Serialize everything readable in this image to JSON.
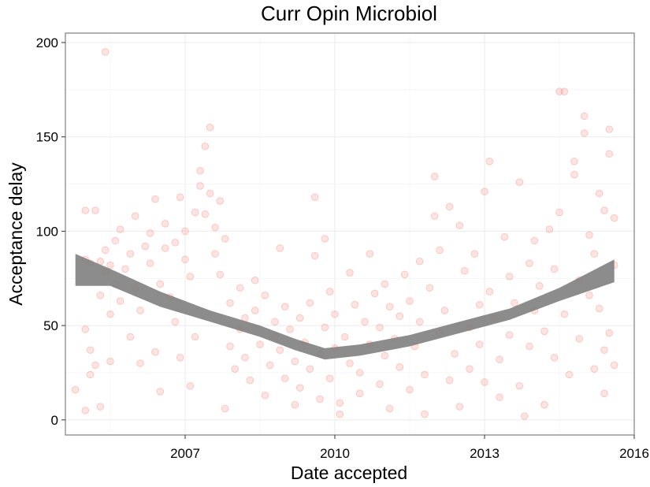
{
  "chart_data": {
    "type": "scatter",
    "title": "Curr Opin Microbiol",
    "xlabel": "Date accepted",
    "ylabel": "Acceptance delay",
    "x_ticks": [
      "2007",
      "2010",
      "2013",
      "2016"
    ],
    "y_ticks": [
      "0",
      "50",
      "100",
      "150",
      "200"
    ],
    "xlim": [
      2004.6,
      2016.0
    ],
    "ylim": [
      -8,
      205
    ],
    "grid": true,
    "point_color": "#f8766d",
    "band_color": "#808080",
    "points": [
      [
        2004.8,
        16
      ],
      [
        2005.0,
        111
      ],
      [
        2005.0,
        85
      ],
      [
        2005.0,
        48
      ],
      [
        2005.1,
        83
      ],
      [
        2005.1,
        37
      ],
      [
        2005.1,
        24
      ],
      [
        2005.0,
        5
      ],
      [
        2005.2,
        111
      ],
      [
        2005.3,
        84
      ],
      [
        2005.3,
        66
      ],
      [
        2005.2,
        29
      ],
      [
        2005.3,
        7
      ],
      [
        2005.4,
        195
      ],
      [
        2005.4,
        90
      ],
      [
        2005.4,
        78
      ],
      [
        2005.5,
        82
      ],
      [
        2005.5,
        56
      ],
      [
        2005.5,
        31
      ],
      [
        2005.6,
        95
      ],
      [
        2005.6,
        72
      ],
      [
        2005.7,
        101
      ],
      [
        2005.7,
        63
      ],
      [
        2005.8,
        80
      ],
      [
        2005.9,
        44
      ],
      [
        2005.9,
        88
      ],
      [
        2006.0,
        108
      ],
      [
        2006.0,
        70
      ],
      [
        2006.1,
        58
      ],
      [
        2006.1,
        30
      ],
      [
        2006.2,
        92
      ],
      [
        2006.3,
        99
      ],
      [
        2006.3,
        83
      ],
      [
        2006.4,
        117
      ],
      [
        2006.4,
        36
      ],
      [
        2006.5,
        72
      ],
      [
        2006.5,
        15
      ],
      [
        2006.6,
        104
      ],
      [
        2006.6,
        91
      ],
      [
        2006.7,
        65
      ],
      [
        2006.8,
        52
      ],
      [
        2006.8,
        94
      ],
      [
        2006.9,
        33
      ],
      [
        2006.9,
        118
      ],
      [
        2007.0,
        100
      ],
      [
        2007.0,
        85
      ],
      [
        2007.1,
        76
      ],
      [
        2007.1,
        18
      ],
      [
        2007.2,
        44
      ],
      [
        2007.2,
        110
      ],
      [
        2007.3,
        124
      ],
      [
        2007.3,
        132
      ],
      [
        2007.4,
        145
      ],
      [
        2007.4,
        109
      ],
      [
        2007.5,
        155
      ],
      [
        2007.5,
        120
      ],
      [
        2007.6,
        102
      ],
      [
        2007.6,
        88
      ],
      [
        2007.7,
        77
      ],
      [
        2007.7,
        116
      ],
      [
        2007.8,
        96
      ],
      [
        2007.8,
        6
      ],
      [
        2007.9,
        39
      ],
      [
        2007.9,
        62
      ],
      [
        2008.0,
        27
      ],
      [
        2008.1,
        48
      ],
      [
        2008.1,
        70
      ],
      [
        2008.2,
        54
      ],
      [
        2008.2,
        33
      ],
      [
        2008.3,
        21
      ],
      [
        2008.4,
        74
      ],
      [
        2008.4,
        58
      ],
      [
        2008.5,
        40
      ],
      [
        2008.6,
        66
      ],
      [
        2008.6,
        13
      ],
      [
        2008.7,
        29
      ],
      [
        2008.8,
        52
      ],
      [
        2008.8,
        44
      ],
      [
        2008.9,
        91
      ],
      [
        2008.9,
        37
      ],
      [
        2009.0,
        60
      ],
      [
        2009.0,
        22
      ],
      [
        2009.1,
        48
      ],
      [
        2009.2,
        31
      ],
      [
        2009.2,
        8
      ],
      [
        2009.3,
        54
      ],
      [
        2009.3,
        17
      ],
      [
        2009.4,
        41
      ],
      [
        2009.5,
        62
      ],
      [
        2009.5,
        27
      ],
      [
        2009.6,
        118
      ],
      [
        2009.6,
        87
      ],
      [
        2009.7,
        35
      ],
      [
        2009.7,
        11
      ],
      [
        2009.8,
        49
      ],
      [
        2009.8,
        96
      ],
      [
        2009.9,
        68
      ],
      [
        2009.9,
        22
      ],
      [
        2010.0,
        56
      ],
      [
        2010.0,
        38
      ],
      [
        2010.1,
        9
      ],
      [
        2010.1,
        3
      ],
      [
        2010.2,
        44
      ],
      [
        2010.3,
        30
      ],
      [
        2010.3,
        78
      ],
      [
        2010.4,
        61
      ],
      [
        2010.5,
        25
      ],
      [
        2010.5,
        14
      ],
      [
        2010.6,
        52
      ],
      [
        2010.7,
        40
      ],
      [
        2010.7,
        88
      ],
      [
        2010.8,
        67
      ],
      [
        2010.9,
        19
      ],
      [
        2010.9,
        49
      ],
      [
        2011.0,
        72
      ],
      [
        2011.0,
        34
      ],
      [
        2011.1,
        60
      ],
      [
        2011.1,
        6
      ],
      [
        2011.2,
        43
      ],
      [
        2011.3,
        55
      ],
      [
        2011.3,
        28
      ],
      [
        2011.4,
        77
      ],
      [
        2011.5,
        16
      ],
      [
        2011.5,
        63
      ],
      [
        2011.6,
        39
      ],
      [
        2011.7,
        84
      ],
      [
        2011.7,
        52
      ],
      [
        2011.8,
        24
      ],
      [
        2011.8,
        3
      ],
      [
        2011.9,
        70
      ],
      [
        2012.0,
        129
      ],
      [
        2012.0,
        108
      ],
      [
        2012.1,
        46
      ],
      [
        2012.1,
        90
      ],
      [
        2012.2,
        58
      ],
      [
        2012.3,
        21
      ],
      [
        2012.3,
        113
      ],
      [
        2012.4,
        35
      ],
      [
        2012.5,
        103
      ],
      [
        2012.5,
        7
      ],
      [
        2012.6,
        79
      ],
      [
        2012.7,
        49
      ],
      [
        2012.7,
        27
      ],
      [
        2012.8,
        88
      ],
      [
        2012.9,
        61
      ],
      [
        2012.9,
        40
      ],
      [
        2013.0,
        20
      ],
      [
        2013.0,
        121
      ],
      [
        2013.1,
        137
      ],
      [
        2013.1,
        68
      ],
      [
        2013.2,
        54
      ],
      [
        2013.3,
        32
      ],
      [
        2013.3,
        12
      ],
      [
        2013.4,
        97
      ],
      [
        2013.5,
        76
      ],
      [
        2013.5,
        45
      ],
      [
        2013.6,
        62
      ],
      [
        2013.7,
        126
      ],
      [
        2013.7,
        18
      ],
      [
        2013.8,
        2
      ],
      [
        2013.9,
        83
      ],
      [
        2013.9,
        39
      ],
      [
        2014.0,
        58
      ],
      [
        2014.0,
        95
      ],
      [
        2014.1,
        71
      ],
      [
        2014.2,
        47
      ],
      [
        2014.2,
        8
      ],
      [
        2014.3,
        101
      ],
      [
        2014.4,
        33
      ],
      [
        2014.4,
        80
      ],
      [
        2014.5,
        110
      ],
      [
        2014.5,
        174
      ],
      [
        2014.6,
        174
      ],
      [
        2014.6,
        56
      ],
      [
        2014.7,
        24
      ],
      [
        2014.8,
        130
      ],
      [
        2014.8,
        137
      ],
      [
        2014.9,
        74
      ],
      [
        2014.9,
        43
      ],
      [
        2015.0,
        161
      ],
      [
        2015.0,
        152
      ],
      [
        2015.1,
        98
      ],
      [
        2015.1,
        66
      ],
      [
        2015.2,
        88
      ],
      [
        2015.2,
        27
      ],
      [
        2015.3,
        59
      ],
      [
        2015.3,
        120
      ],
      [
        2015.4,
        37
      ],
      [
        2015.4,
        111
      ],
      [
        2015.5,
        141
      ],
      [
        2015.5,
        154
      ],
      [
        2015.6,
        107
      ],
      [
        2015.6,
        82
      ],
      [
        2015.6,
        29
      ],
      [
        2015.5,
        46
      ],
      [
        2015.4,
        14
      ]
    ],
    "smooth_band": [
      {
        "x": 2004.8,
        "lower": 71,
        "upper": 88
      },
      {
        "x": 2005.5,
        "lower": 71,
        "upper": 80
      },
      {
        "x": 2006.5,
        "lower": 60,
        "upper": 68
      },
      {
        "x": 2007.5,
        "lower": 52,
        "upper": 58
      },
      {
        "x": 2008.5,
        "lower": 44,
        "upper": 50
      },
      {
        "x": 2009.2,
        "lower": 37,
        "upper": 43
      },
      {
        "x": 2009.8,
        "lower": 32,
        "upper": 38
      },
      {
        "x": 2010.5,
        "lower": 34,
        "upper": 40
      },
      {
        "x": 2011.5,
        "lower": 39,
        "upper": 45
      },
      {
        "x": 2012.5,
        "lower": 46,
        "upper": 52
      },
      {
        "x": 2013.5,
        "lower": 53,
        "upper": 59
      },
      {
        "x": 2014.5,
        "lower": 63,
        "upper": 70
      },
      {
        "x": 2015.6,
        "lower": 73,
        "upper": 85
      }
    ]
  }
}
